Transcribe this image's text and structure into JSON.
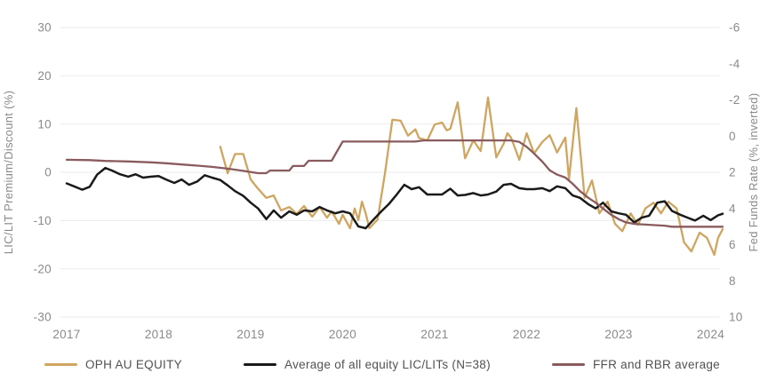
{
  "chart_data": {
    "type": "line",
    "title": "",
    "grid": true,
    "legend_position": "bottom",
    "x_axis": {
      "ticks": [
        "2017",
        "2018",
        "2019",
        "2020",
        "2021",
        "2022",
        "2023",
        "2024"
      ],
      "range": [
        2017,
        2024.2
      ]
    },
    "left_axis": {
      "label": "LIC/LIT Premium/Discount (%)",
      "ticks": [
        30,
        20,
        10,
        0,
        -10,
        -20,
        -30
      ],
      "range": [
        -30,
        30
      ]
    },
    "right_axis": {
      "label": "Fed Funds Rate (%, inverted)",
      "ticks": [
        -6,
        -4,
        -2,
        0,
        2,
        4,
        6,
        8,
        10
      ],
      "range": [
        -6,
        10
      ],
      "inverted": true
    },
    "colors": {
      "grid": "#ebebeb",
      "tick_text": "#8a8a8a",
      "legend_text": "#525252"
    },
    "series": [
      {
        "name": "OPH AU EQUITY",
        "color": "#CFA560",
        "axis": "left",
        "points": [
          [
            2018.67,
            5.3
          ],
          [
            2018.75,
            -0.2
          ],
          [
            2018.83,
            3.8
          ],
          [
            2018.92,
            3.8
          ],
          [
            2019.0,
            -1.5
          ],
          [
            2019.08,
            -3.4
          ],
          [
            2019.17,
            -5.3
          ],
          [
            2019.25,
            -4.8
          ],
          [
            2019.33,
            -7.9
          ],
          [
            2019.42,
            -7.2
          ],
          [
            2019.5,
            -8.6
          ],
          [
            2019.58,
            -7.0
          ],
          [
            2019.67,
            -9.2
          ],
          [
            2019.75,
            -7.2
          ],
          [
            2019.83,
            -9.4
          ],
          [
            2019.88,
            -8.1
          ],
          [
            2019.96,
            -10.7
          ],
          [
            2020.0,
            -8.8
          ],
          [
            2020.08,
            -11.6
          ],
          [
            2020.13,
            -7.5
          ],
          [
            2020.17,
            -9.9
          ],
          [
            2020.21,
            -6.1
          ],
          [
            2020.25,
            -8.5
          ],
          [
            2020.29,
            -11.6
          ],
          [
            2020.38,
            -9.8
          ],
          [
            2020.46,
            -0.2
          ],
          [
            2020.54,
            10.9
          ],
          [
            2020.63,
            10.7
          ],
          [
            2020.71,
            7.6
          ],
          [
            2020.79,
            8.9
          ],
          [
            2020.83,
            7.1
          ],
          [
            2020.92,
            6.6
          ],
          [
            2021.0,
            9.9
          ],
          [
            2021.08,
            10.3
          ],
          [
            2021.13,
            8.7
          ],
          [
            2021.17,
            9.0
          ],
          [
            2021.25,
            14.5
          ],
          [
            2021.33,
            2.9
          ],
          [
            2021.42,
            6.6
          ],
          [
            2021.5,
            4.4
          ],
          [
            2021.58,
            15.5
          ],
          [
            2021.67,
            3.1
          ],
          [
            2021.75,
            5.9
          ],
          [
            2021.79,
            8.1
          ],
          [
            2021.83,
            7.2
          ],
          [
            2021.92,
            2.6
          ],
          [
            2022.0,
            8.1
          ],
          [
            2022.08,
            3.9
          ],
          [
            2022.17,
            6.3
          ],
          [
            2022.25,
            7.7
          ],
          [
            2022.33,
            4.1
          ],
          [
            2022.42,
            7.2
          ],
          [
            2022.46,
            -1.5
          ],
          [
            2022.54,
            13.3
          ],
          [
            2022.63,
            -5.3
          ],
          [
            2022.71,
            -1.7
          ],
          [
            2022.79,
            -8.5
          ],
          [
            2022.88,
            -6.1
          ],
          [
            2022.96,
            -10.7
          ],
          [
            2023.04,
            -12.2
          ],
          [
            2023.13,
            -8.5
          ],
          [
            2023.21,
            -10.9
          ],
          [
            2023.29,
            -7.5
          ],
          [
            2023.38,
            -6.3
          ],
          [
            2023.46,
            -8.5
          ],
          [
            2023.54,
            -6.1
          ],
          [
            2023.63,
            -7.5
          ],
          [
            2023.71,
            -14.5
          ],
          [
            2023.79,
            -16.4
          ],
          [
            2023.88,
            -12.5
          ],
          [
            2023.96,
            -13.6
          ],
          [
            2024.04,
            -17.1
          ],
          [
            2024.08,
            -13.6
          ],
          [
            2024.13,
            -11.8
          ]
        ]
      },
      {
        "name": "Average of all equity LIC/LITs (N=38)",
        "color": "#1A1A1A",
        "axis": "left",
        "points": [
          [
            2017.0,
            -2.3
          ],
          [
            2017.08,
            -2.9
          ],
          [
            2017.17,
            -3.6
          ],
          [
            2017.25,
            -3.0
          ],
          [
            2017.33,
            -0.5
          ],
          [
            2017.42,
            0.9
          ],
          [
            2017.5,
            0.3
          ],
          [
            2017.58,
            -0.4
          ],
          [
            2017.67,
            -0.9
          ],
          [
            2017.75,
            -0.4
          ],
          [
            2017.83,
            -1.1
          ],
          [
            2017.92,
            -0.9
          ],
          [
            2018.0,
            -0.8
          ],
          [
            2018.08,
            -1.5
          ],
          [
            2018.17,
            -2.2
          ],
          [
            2018.25,
            -1.5
          ],
          [
            2018.33,
            -2.6
          ],
          [
            2018.42,
            -1.9
          ],
          [
            2018.5,
            -0.6
          ],
          [
            2018.58,
            -1.1
          ],
          [
            2018.67,
            -1.6
          ],
          [
            2018.75,
            -2.7
          ],
          [
            2018.83,
            -3.9
          ],
          [
            2018.92,
            -4.9
          ],
          [
            2019.0,
            -6.3
          ],
          [
            2019.08,
            -7.5
          ],
          [
            2019.17,
            -9.7
          ],
          [
            2019.25,
            -7.9
          ],
          [
            2019.33,
            -9.4
          ],
          [
            2019.42,
            -8.1
          ],
          [
            2019.5,
            -8.8
          ],
          [
            2019.58,
            -7.9
          ],
          [
            2019.67,
            -8.1
          ],
          [
            2019.75,
            -7.2
          ],
          [
            2019.83,
            -7.9
          ],
          [
            2019.92,
            -8.5
          ],
          [
            2020.0,
            -8.1
          ],
          [
            2020.08,
            -8.5
          ],
          [
            2020.17,
            -11.2
          ],
          [
            2020.25,
            -11.6
          ],
          [
            2020.33,
            -9.9
          ],
          [
            2020.42,
            -8.1
          ],
          [
            2020.5,
            -6.6
          ],
          [
            2020.58,
            -4.8
          ],
          [
            2020.67,
            -2.6
          ],
          [
            2020.75,
            -3.5
          ],
          [
            2020.83,
            -3.1
          ],
          [
            2020.92,
            -4.6
          ],
          [
            2021.0,
            -4.6
          ],
          [
            2021.08,
            -4.6
          ],
          [
            2021.17,
            -3.4
          ],
          [
            2021.25,
            -4.8
          ],
          [
            2021.33,
            -4.7
          ],
          [
            2021.42,
            -4.3
          ],
          [
            2021.5,
            -4.8
          ],
          [
            2021.58,
            -4.6
          ],
          [
            2021.67,
            -4.0
          ],
          [
            2021.75,
            -2.6
          ],
          [
            2021.83,
            -2.4
          ],
          [
            2021.92,
            -3.3
          ],
          [
            2022.0,
            -3.5
          ],
          [
            2022.08,
            -3.5
          ],
          [
            2022.17,
            -3.3
          ],
          [
            2022.25,
            -3.9
          ],
          [
            2022.33,
            -2.9
          ],
          [
            2022.42,
            -3.3
          ],
          [
            2022.5,
            -4.8
          ],
          [
            2022.58,
            -5.3
          ],
          [
            2022.67,
            -6.6
          ],
          [
            2022.75,
            -7.5
          ],
          [
            2022.83,
            -6.3
          ],
          [
            2022.92,
            -8.1
          ],
          [
            2023.0,
            -8.5
          ],
          [
            2023.08,
            -8.8
          ],
          [
            2023.17,
            -10.4
          ],
          [
            2023.25,
            -9.4
          ],
          [
            2023.33,
            -9.0
          ],
          [
            2023.42,
            -6.3
          ],
          [
            2023.5,
            -6.0
          ],
          [
            2023.58,
            -8.0
          ],
          [
            2023.67,
            -8.8
          ],
          [
            2023.75,
            -9.4
          ],
          [
            2023.83,
            -10.0
          ],
          [
            2023.92,
            -9.0
          ],
          [
            2024.0,
            -9.9
          ],
          [
            2024.08,
            -8.9
          ],
          [
            2024.13,
            -8.6
          ]
        ]
      },
      {
        "name": "FFR and RBR average",
        "color": "#8A5B5E",
        "axis": "right",
        "points": [
          [
            2017.0,
            1.31
          ],
          [
            2017.25,
            1.33
          ],
          [
            2017.42,
            1.37
          ],
          [
            2017.67,
            1.4
          ],
          [
            2017.92,
            1.45
          ],
          [
            2018.08,
            1.5
          ],
          [
            2018.25,
            1.57
          ],
          [
            2018.42,
            1.63
          ],
          [
            2018.58,
            1.7
          ],
          [
            2018.75,
            1.8
          ],
          [
            2018.92,
            1.92
          ],
          [
            2019.08,
            2.05
          ],
          [
            2019.17,
            2.05
          ],
          [
            2019.21,
            1.9
          ],
          [
            2019.42,
            1.9
          ],
          [
            2019.46,
            1.65
          ],
          [
            2019.58,
            1.65
          ],
          [
            2019.63,
            1.36
          ],
          [
            2019.88,
            1.36
          ],
          [
            2020.0,
            0.3
          ],
          [
            2020.79,
            0.3
          ],
          [
            2020.88,
            0.24
          ],
          [
            2021.83,
            0.24
          ],
          [
            2021.92,
            0.32
          ],
          [
            2022.0,
            0.59
          ],
          [
            2022.08,
            0.96
          ],
          [
            2022.17,
            1.41
          ],
          [
            2022.25,
            1.89
          ],
          [
            2022.33,
            2.13
          ],
          [
            2022.42,
            2.29
          ],
          [
            2022.5,
            2.64
          ],
          [
            2022.58,
            3.04
          ],
          [
            2022.67,
            3.41
          ],
          [
            2022.75,
            3.68
          ],
          [
            2022.83,
            4.0
          ],
          [
            2022.92,
            4.35
          ],
          [
            2023.0,
            4.59
          ],
          [
            2023.08,
            4.77
          ],
          [
            2023.17,
            4.85
          ],
          [
            2023.33,
            4.9
          ],
          [
            2023.5,
            4.95
          ],
          [
            2023.58,
            5.01
          ],
          [
            2024.13,
            5.01
          ]
        ]
      }
    ]
  }
}
